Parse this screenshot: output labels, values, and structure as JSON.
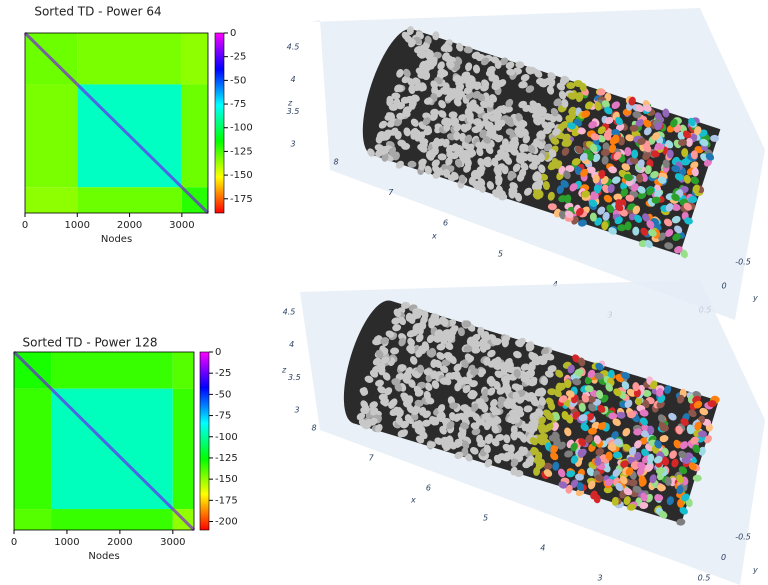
{
  "chart_data": [
    {
      "type": "heatmap",
      "title": "Sorted TD - Power 64",
      "xlabel": "Nodes",
      "bins": [
        0,
        1000,
        3000,
        3500
      ],
      "z": [
        [
          -130,
          -132,
          -135
        ],
        [
          -132,
          -85,
          -130
        ],
        [
          -135,
          -130,
          -120
        ]
      ],
      "xlim": [
        0,
        3500
      ],
      "xticks": [
        0,
        1000,
        2000,
        3000
      ],
      "clim": [
        -190,
        0
      ],
      "cticks": [
        0,
        -25,
        -50,
        -75,
        -100,
        -125,
        -150,
        -175
      ]
    },
    {
      "type": "scatter3d",
      "xlabel": "x",
      "ylabel": "y",
      "zlabel": "z",
      "xlim": [
        8,
        3
      ],
      "xticks": [
        8,
        7,
        6,
        5,
        4,
        3
      ],
      "ylim": [
        -0.5,
        0.5
      ],
      "yticks": [
        -0.5,
        0,
        0.5
      ],
      "zlim": [
        3,
        4.5
      ],
      "zticks": [
        3,
        3.5,
        4,
        4.5
      ]
    },
    {
      "type": "heatmap",
      "title": "Sorted TD - Power 128",
      "xlabel": "Nodes",
      "bins": [
        0,
        700,
        3000,
        3400
      ],
      "z": [
        [
          -130,
          -135,
          -140
        ],
        [
          -135,
          -95,
          -135
        ],
        [
          -140,
          -135,
          -150
        ]
      ],
      "xlim": [
        0,
        3400
      ],
      "xticks": [
        0,
        1000,
        2000,
        3000
      ],
      "clim": [
        -210,
        0
      ],
      "cticks": [
        0,
        -25,
        -50,
        -75,
        -100,
        -125,
        -150,
        -175,
        -200
      ]
    },
    {
      "type": "scatter3d",
      "xlabel": "x",
      "ylabel": "y",
      "zlabel": "z",
      "xlim": [
        8,
        3
      ],
      "xticks": [
        8,
        7,
        6,
        5,
        4,
        3
      ],
      "ylim": [
        -0.5,
        0.5
      ],
      "yticks": [
        -0.5,
        0,
        0.5
      ],
      "zlim": [
        3,
        4.5
      ],
      "zticks": [
        3,
        3.5,
        4,
        4.5
      ]
    }
  ]
}
